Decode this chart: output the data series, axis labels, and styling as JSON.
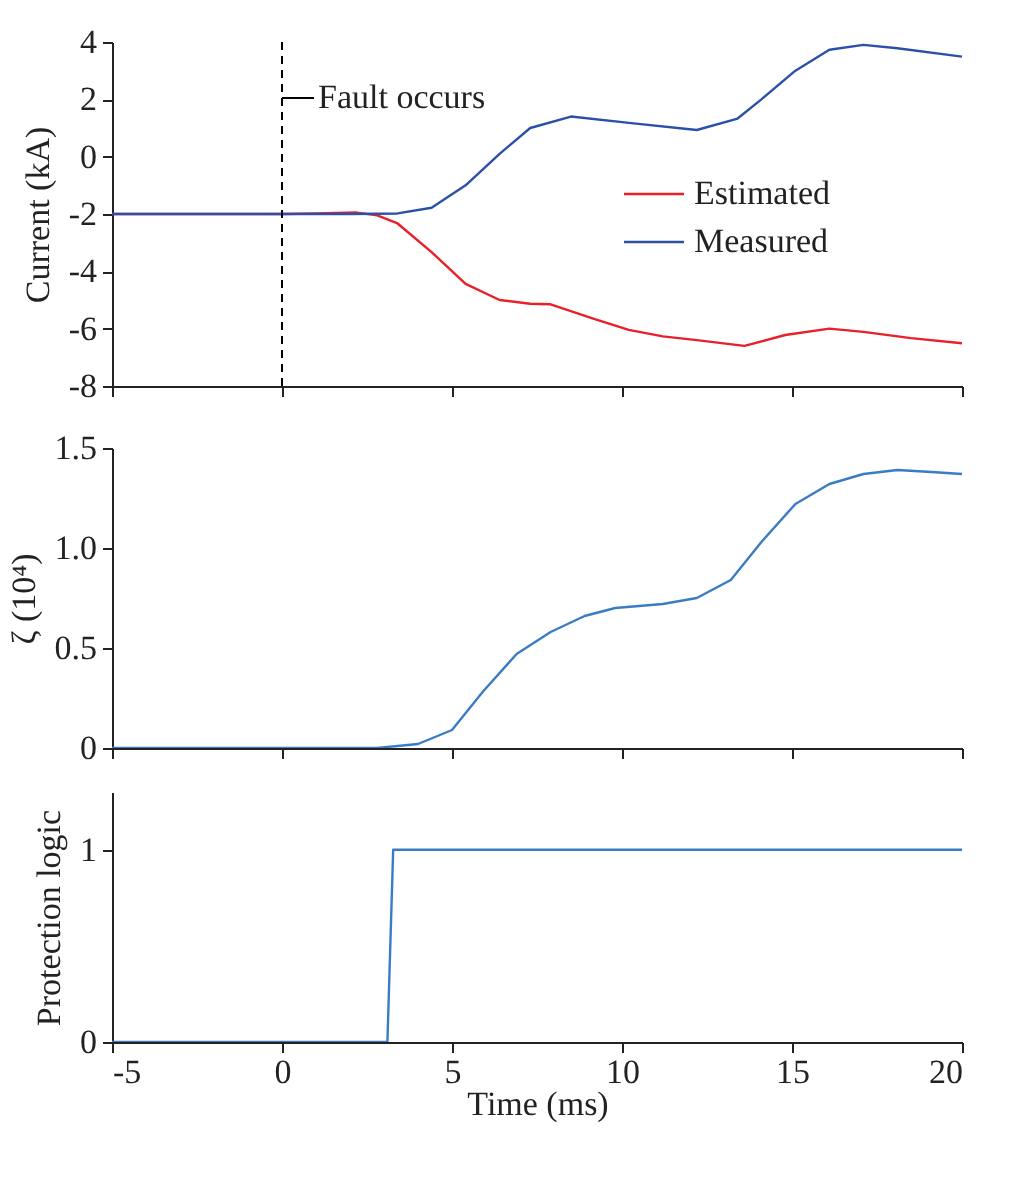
{
  "chart_data": [
    {
      "type": "line",
      "ylabel": "Current (kA)",
      "xlim": [
        -5,
        20
      ],
      "ylim": [
        -8,
        4
      ],
      "xticks": [
        -5,
        0,
        5,
        10,
        15,
        20
      ],
      "yticks": [
        -8,
        -6,
        -4,
        -2,
        0,
        2,
        4
      ],
      "tick_labels": "y",
      "legend": "right",
      "grid": false,
      "series": [
        {
          "name": "Estimated",
          "color": "#e8202a",
          "x": [
            -5,
            0,
            1,
            2.2,
            2.8,
            3.4,
            4.4,
            5.4,
            6.4,
            7.3,
            7.9,
            9.2,
            10.2,
            11.2,
            12.2,
            13.6,
            14.8,
            16.1,
            17.1,
            18.5,
            20
          ],
          "values": [
            -2,
            -2,
            -1.98,
            -1.95,
            -2.05,
            -2.33,
            -3.33,
            -4.44,
            -5.0,
            -5.13,
            -5.15,
            -5.67,
            -6.04,
            -6.27,
            -6.4,
            -6.6,
            -6.22,
            -6.0,
            -6.11,
            -6.33,
            -6.51
          ]
        },
        {
          "name": "Measured",
          "color": "#2b50a8",
          "x": [
            -5,
            0,
            2,
            3.4,
            4.4,
            5.4,
            6.4,
            7.3,
            8.5,
            10.2,
            12.2,
            13.4,
            14.1,
            15.1,
            16.1,
            17.1,
            18.1,
            20
          ],
          "values": [
            -2,
            -2,
            -2,
            -1.98,
            -1.78,
            -1.0,
            0.1,
            1.0,
            1.4,
            1.18,
            0.93,
            1.33,
            2.0,
            3.0,
            3.73,
            3.9,
            3.78,
            3.49
          ]
        }
      ],
      "ref_lines": [
        {
          "axis": "x",
          "value": 0,
          "label": "Fault occurs",
          "line_style": "dashed",
          "color": "#000000"
        }
      ]
    },
    {
      "type": "line",
      "ylabel": "ζ (10⁴)",
      "xlim": [
        -5,
        20
      ],
      "ylim": [
        0,
        1.5
      ],
      "xticks": [
        -5,
        0,
        5,
        10,
        15,
        20
      ],
      "yticks": [
        0,
        0.5,
        {
          "value": 1,
          "label": "1.0"
        },
        1.5
      ],
      "tick_labels": "y",
      "grid": false,
      "series": [
        {
          "color": "#3a7cc4",
          "x": [
            -5,
            0,
            2.8,
            4.0,
            5.0,
            5.9,
            6.9,
            7.9,
            8.9,
            9.8,
            11.2,
            12.2,
            13.2,
            14.1,
            15.1,
            16.1,
            17.1,
            18.1,
            19.1,
            20
          ],
          "values": [
            0,
            0,
            0,
            0.02,
            0.09,
            0.28,
            0.47,
            0.58,
            0.66,
            0.7,
            0.72,
            0.75,
            0.84,
            1.03,
            1.22,
            1.32,
            1.37,
            1.39,
            1.38,
            1.37
          ]
        }
      ]
    },
    {
      "type": "line",
      "xlabel": "Time (ms)",
      "ylabel": "Protection logic",
      "xlim": [
        -5,
        20
      ],
      "ylim": [
        0,
        1.3
      ],
      "xticks": [
        -5,
        0,
        5,
        10,
        15,
        20
      ],
      "yticks": [
        0,
        1
      ],
      "grid": false,
      "series": [
        {
          "color": "#3a7cc4",
          "x": [
            -5,
            3.1,
            3.27,
            20
          ],
          "values": [
            0,
            0,
            1,
            1
          ]
        }
      ]
    }
  ]
}
